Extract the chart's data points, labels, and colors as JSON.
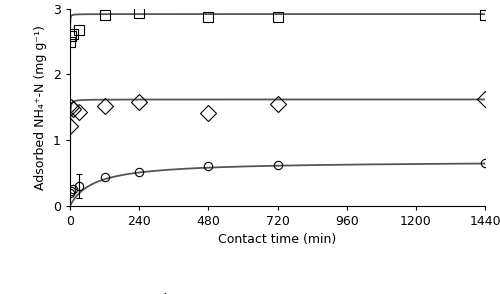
{
  "title": "",
  "xlabel": "Contact time (min)",
  "ylabel": "Adsorbed NH₄⁺-N (mg g⁻¹)",
  "xlim": [
    0,
    1440
  ],
  "ylim": [
    0,
    3.0
  ],
  "xticks": [
    0,
    240,
    480,
    720,
    960,
    1200,
    1440
  ],
  "yticks": [
    0,
    1,
    2,
    3
  ],
  "BC_x": [
    1,
    5,
    10,
    30,
    120,
    240,
    480,
    720,
    1440
  ],
  "BC_y": [
    0.2,
    0.22,
    0.25,
    0.3,
    0.44,
    0.52,
    0.6,
    0.62,
    0.65
  ],
  "BC_yerr_idx": 3,
  "BC_yerr_val": 0.18,
  "KBC_x": [
    1,
    5,
    10,
    30,
    120,
    240,
    480,
    720,
    1440
  ],
  "KBC_y": [
    1.22,
    1.5,
    1.48,
    1.43,
    1.52,
    1.58,
    1.42,
    1.55,
    1.62
  ],
  "HBC_x": [
    1,
    5,
    10,
    30,
    120,
    240,
    480,
    720,
    1440
  ],
  "HBC_y": [
    2.5,
    2.58,
    2.62,
    2.68,
    2.9,
    2.93,
    2.88,
    2.88,
    2.9
  ],
  "BC_fit_qe": 0.68,
  "BC_fit_k2": 0.018,
  "KBC_fit_qe": 1.62,
  "KBC_fit_k2": 2.5,
  "HBC_fit_qe": 2.92,
  "HBC_fit_k2": 8.0,
  "line_color": "#555555",
  "marker_color": "#000000",
  "background_color": "#ffffff",
  "fontsize_axis": 9,
  "fontsize_tick": 9,
  "fontsize_legend": 9
}
